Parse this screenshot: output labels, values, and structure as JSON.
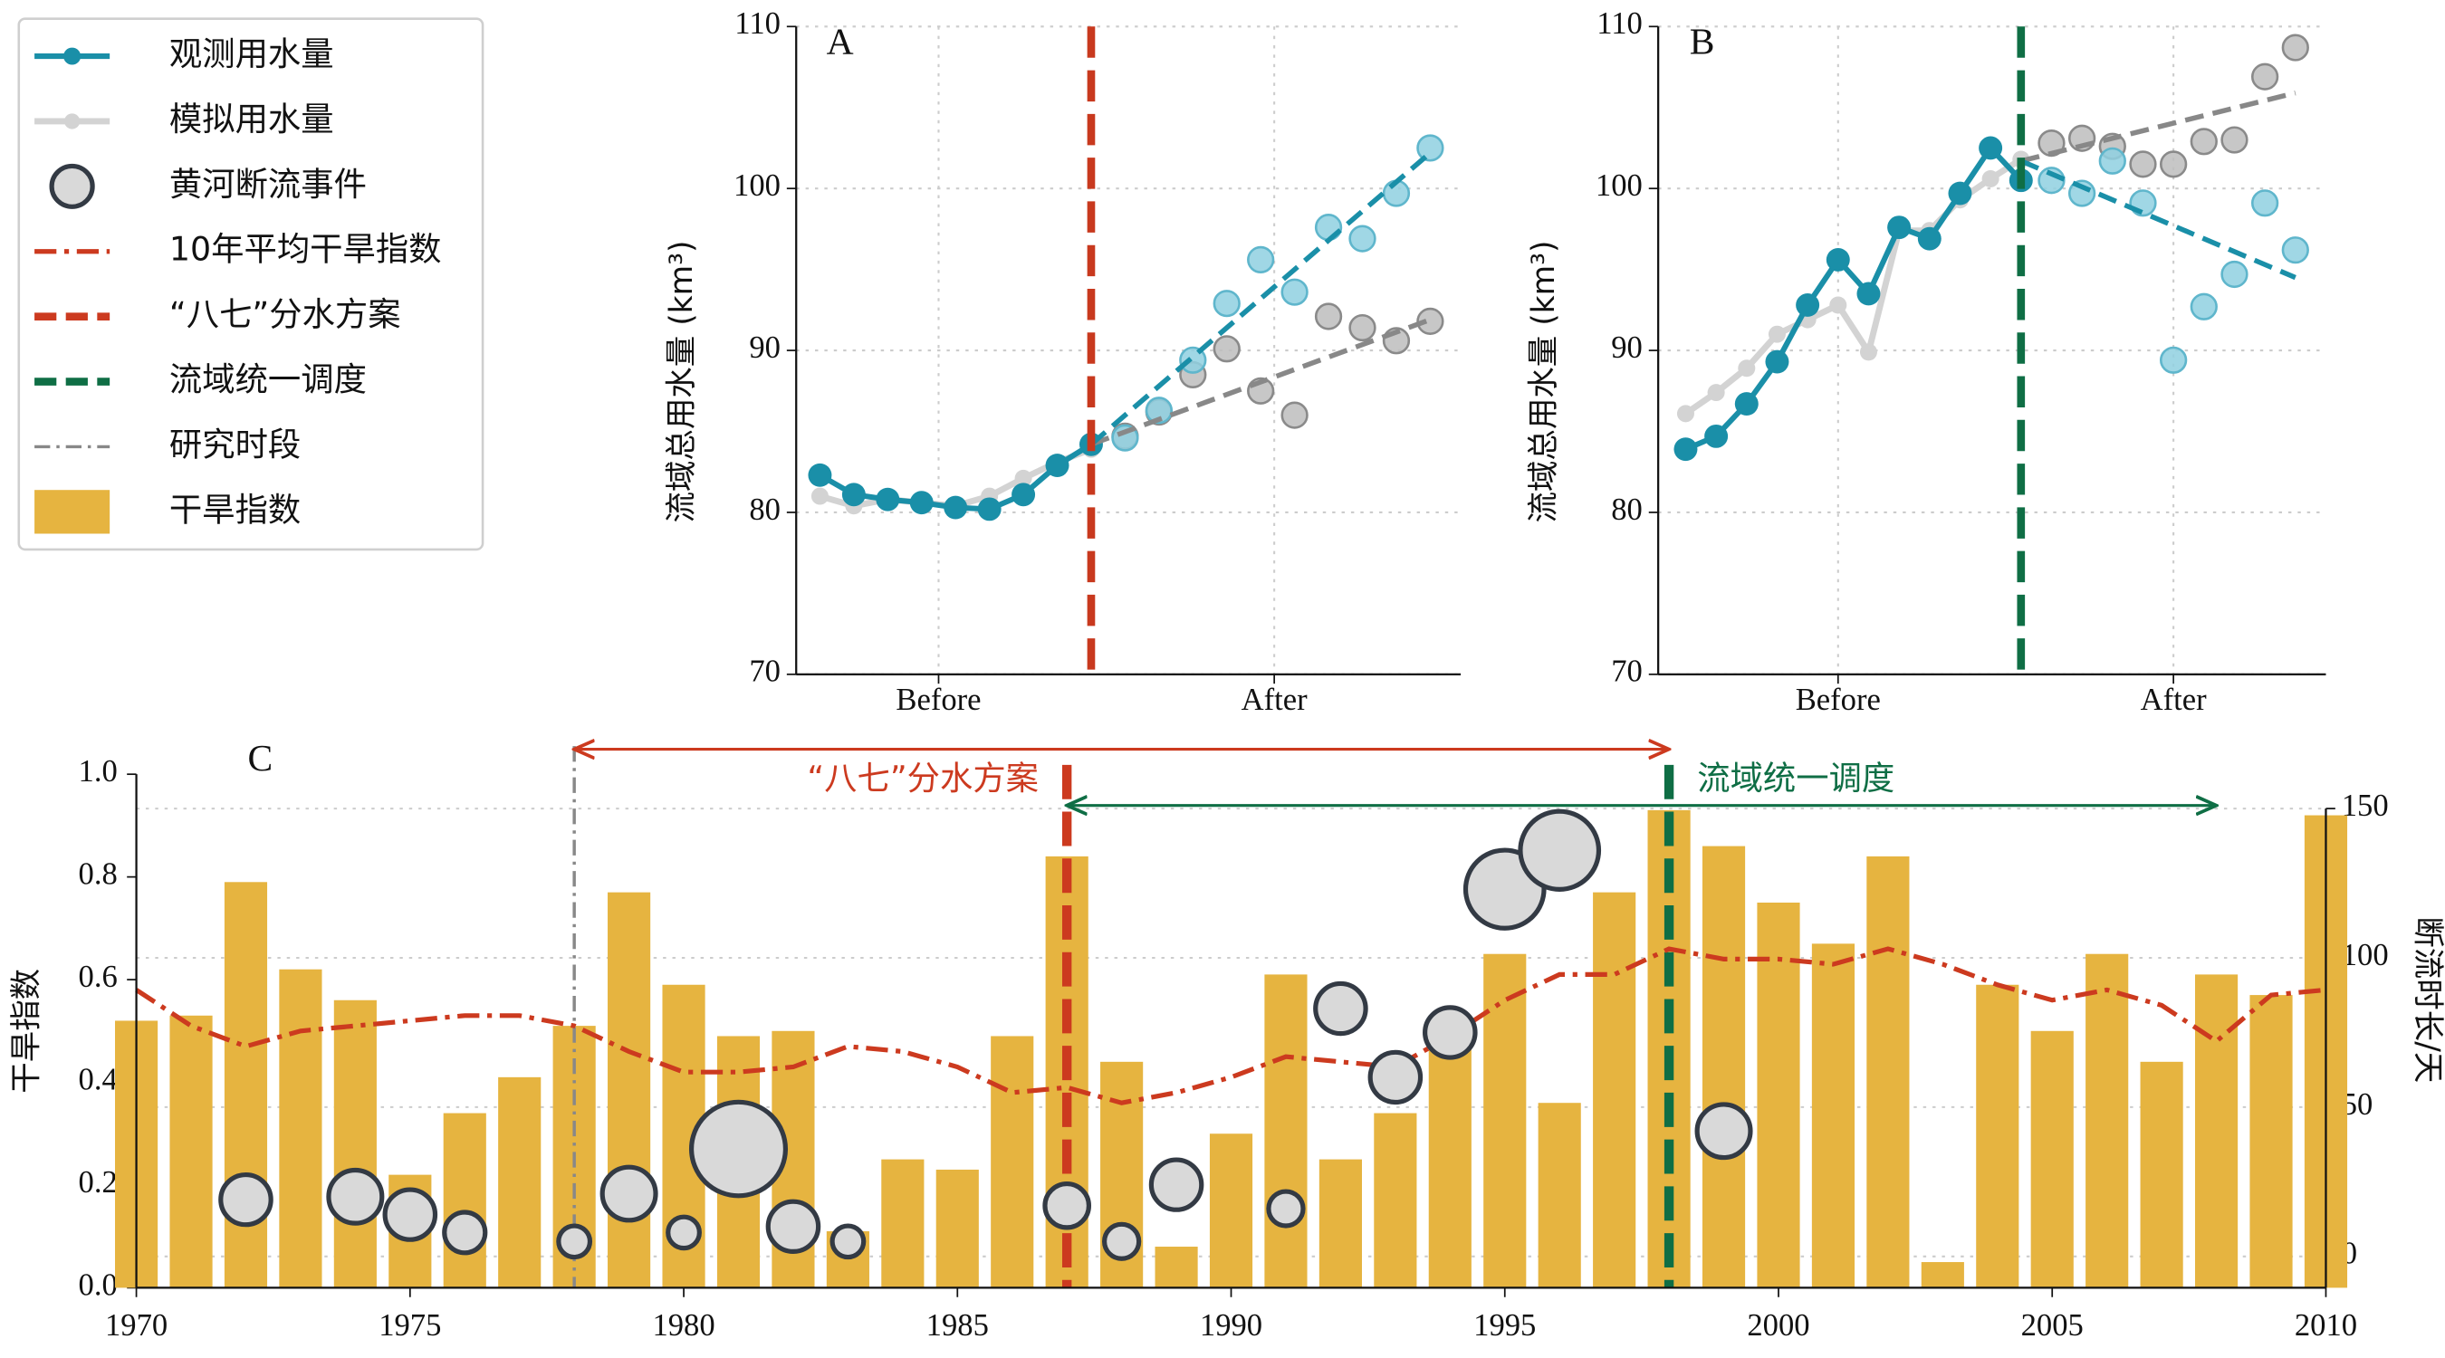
{
  "chart_data": [
    {
      "type": "line",
      "label": "A",
      "ylabel": "流域总用水量 (km³)",
      "x": [
        0,
        1,
        2,
        3,
        4,
        5,
        6,
        7,
        8,
        9,
        10,
        11,
        12,
        13,
        14,
        15,
        16,
        17,
        18
      ],
      "xlim": [
        -0.7,
        18.9
      ],
      "xticks": [
        {
          "value": 3.5,
          "label": "Before"
        },
        {
          "value": 13.4,
          "label": "After"
        }
      ],
      "ylim": [
        70,
        110
      ],
      "yticks": [
        70,
        80,
        90,
        100,
        110
      ],
      "grid": true,
      "vline": {
        "x": 8,
        "color": "#c8391e"
      },
      "trend_x": [
        8,
        18
      ],
      "series": [
        {
          "name": "观测用水量",
          "color": "#1a8fa8",
          "light_color": "#8fd0e0",
          "values": [
            82.3,
            81.1,
            80.8,
            80.6,
            80.3,
            80.2,
            81.1,
            82.9,
            84.2,
            84.6,
            86.3,
            89.4,
            92.9,
            95.6,
            93.6,
            97.6,
            96.9,
            99.7,
            102.5
          ],
          "trend": [
            84.2,
            102.2
          ]
        },
        {
          "name": "模拟用水量",
          "color": "#d3d3d3",
          "light_color": "#bdbdbd",
          "values": [
            81.0,
            80.4,
            80.8,
            80.6,
            80.4,
            81.0,
            82.1,
            83.1,
            83.9,
            84.7,
            86.2,
            88.5,
            90.1,
            87.5,
            86.0,
            92.1,
            91.4,
            90.6,
            91.8
          ],
          "trend": [
            84.2,
            91.9
          ]
        }
      ]
    },
    {
      "type": "line",
      "label": "B",
      "ylabel": "流域总用水量 (km³)",
      "x": [
        0,
        1,
        2,
        3,
        4,
        5,
        6,
        7,
        8,
        9,
        10,
        11,
        12,
        13,
        14,
        15,
        16,
        17,
        18,
        19,
        20
      ],
      "xlim": [
        -0.9,
        21
      ],
      "xticks": [
        {
          "value": 5,
          "label": "Before"
        },
        {
          "value": 16,
          "label": "After"
        }
      ],
      "ylim": [
        70,
        110
      ],
      "yticks": [
        70,
        80,
        90,
        100,
        110
      ],
      "grid": true,
      "vline": {
        "x": 11,
        "color": "#0f6e45"
      },
      "trend_x": [
        11,
        20
      ],
      "series": [
        {
          "name": "观测用水量",
          "color": "#1a8fa8",
          "light_color": "#8fd0e0",
          "values": [
            83.9,
            84.7,
            86.7,
            89.3,
            92.8,
            95.6,
            93.5,
            97.6,
            96.9,
            99.7,
            102.5,
            100.5,
            100.5,
            99.7,
            101.7,
            99.1,
            89.4,
            92.7,
            94.7,
            99.1,
            96.2
          ],
          "trend": [
            101.7,
            94.5
          ]
        },
        {
          "name": "模拟用水量",
          "color": "#d3d3d3",
          "light_color": "#bdbdbd",
          "values": [
            86.1,
            87.4,
            88.9,
            91.0,
            91.9,
            92.8,
            89.9,
            97.4,
            97.4,
            99.3,
            100.6,
            101.8,
            102.8,
            103.1,
            102.6,
            101.5,
            101.5,
            102.9,
            103.0,
            106.9,
            108.7
          ],
          "trend": [
            101.7,
            105.9
          ]
        }
      ]
    },
    {
      "type": "bar",
      "label": "C",
      "ylabel": "干旱指数",
      "y2label": "断流时长/天",
      "x": [
        1970,
        1971,
        1972,
        1973,
        1974,
        1975,
        1976,
        1977,
        1978,
        1979,
        1980,
        1981,
        1982,
        1983,
        1984,
        1985,
        1986,
        1987,
        1988,
        1989,
        1990,
        1991,
        1992,
        1993,
        1994,
        1995,
        1996,
        1997,
        1998,
        1999,
        2000,
        2001,
        2002,
        2003,
        2004,
        2005,
        2006,
        2007,
        2008,
        2009,
        2010
      ],
      "xlim": [
        1970,
        2010
      ],
      "xticks": [
        1970,
        1975,
        1980,
        1985,
        1990,
        1995,
        2000,
        2005,
        2010
      ],
      "ylim": [
        0,
        1
      ],
      "yticks": [
        {
          "value": 0,
          "label": "0.0"
        },
        0.2,
        0.4,
        0.6,
        0.8,
        {
          "value": 1,
          "label": "1.0"
        }
      ],
      "y2lim": [
        -10.5,
        161.5
      ],
      "y2ticks": [
        0,
        50,
        100,
        150
      ],
      "grid": true,
      "series": [
        {
          "name": "干旱指数",
          "type": "bar",
          "color": "#e6b440",
          "values": [
            0.52,
            0.53,
            0.79,
            0.62,
            0.56,
            0.22,
            0.34,
            0.41,
            0.51,
            0.77,
            0.59,
            0.49,
            0.5,
            0.11,
            0.25,
            0.23,
            0.49,
            0.84,
            0.44,
            0.08,
            0.3,
            0.61,
            0.25,
            0.34,
            0.48,
            0.65,
            0.36,
            0.77,
            0.93,
            0.86,
            0.75,
            0.67,
            0.84,
            0.05,
            0.59,
            0.5,
            0.65,
            0.44,
            0.61,
            0.57,
            0.92
          ]
        },
        {
          "name": "10年平均干旱指数",
          "type": "line",
          "color": "#cc3a1f",
          "values": [
            0.58,
            0.51,
            0.47,
            0.5,
            0.51,
            0.52,
            0.53,
            0.53,
            0.51,
            0.46,
            0.42,
            0.42,
            0.43,
            0.47,
            0.46,
            0.43,
            0.38,
            0.39,
            0.36,
            0.38,
            0.41,
            0.45,
            0.44,
            0.43,
            0.49,
            0.56,
            0.61,
            0.61,
            0.66,
            0.64,
            0.64,
            0.63,
            0.66,
            0.63,
            0.59,
            0.56,
            0.58,
            0.55,
            0.48,
            0.57,
            0.58
          ]
        },
        {
          "name": "黄河断流事件",
          "type": "bubble",
          "axis": "y2",
          "color": "#d9d9d9",
          "x": [
            1972,
            1974,
            1975,
            1976,
            1978,
            1979,
            1980,
            1981,
            1982,
            1983,
            1987,
            1988,
            1989,
            1991,
            1992,
            1993,
            1994,
            1995,
            1996,
            1999
          ],
          "values": [
            19,
            20,
            14,
            8,
            5,
            21,
            8,
            36,
            10,
            5,
            17,
            5,
            24,
            16,
            83,
            60,
            75,
            123,
            136,
            42
          ],
          "sizes": [
            16,
            17,
            16,
            13,
            10,
            17,
            10,
            30,
            16,
            10,
            14,
            11,
            16,
            11,
            16,
            16,
            16,
            25,
            25,
            17
          ]
        }
      ],
      "vlines": [
        {
          "name": "“八七”分水方案",
          "x": 1987,
          "color": "#cc3a1f"
        },
        {
          "name": "流域统一调度",
          "x": 1998,
          "color": "#0f6e45"
        },
        {
          "name": "研究时段",
          "x": 1978,
          "color": "#888888"
        }
      ],
      "spans": [
        {
          "from": 1978,
          "to": 1998,
          "color": "#cc3a1f"
        },
        {
          "from": 1987,
          "to": 2008,
          "color": "#0f6e45"
        }
      ]
    }
  ]
}
